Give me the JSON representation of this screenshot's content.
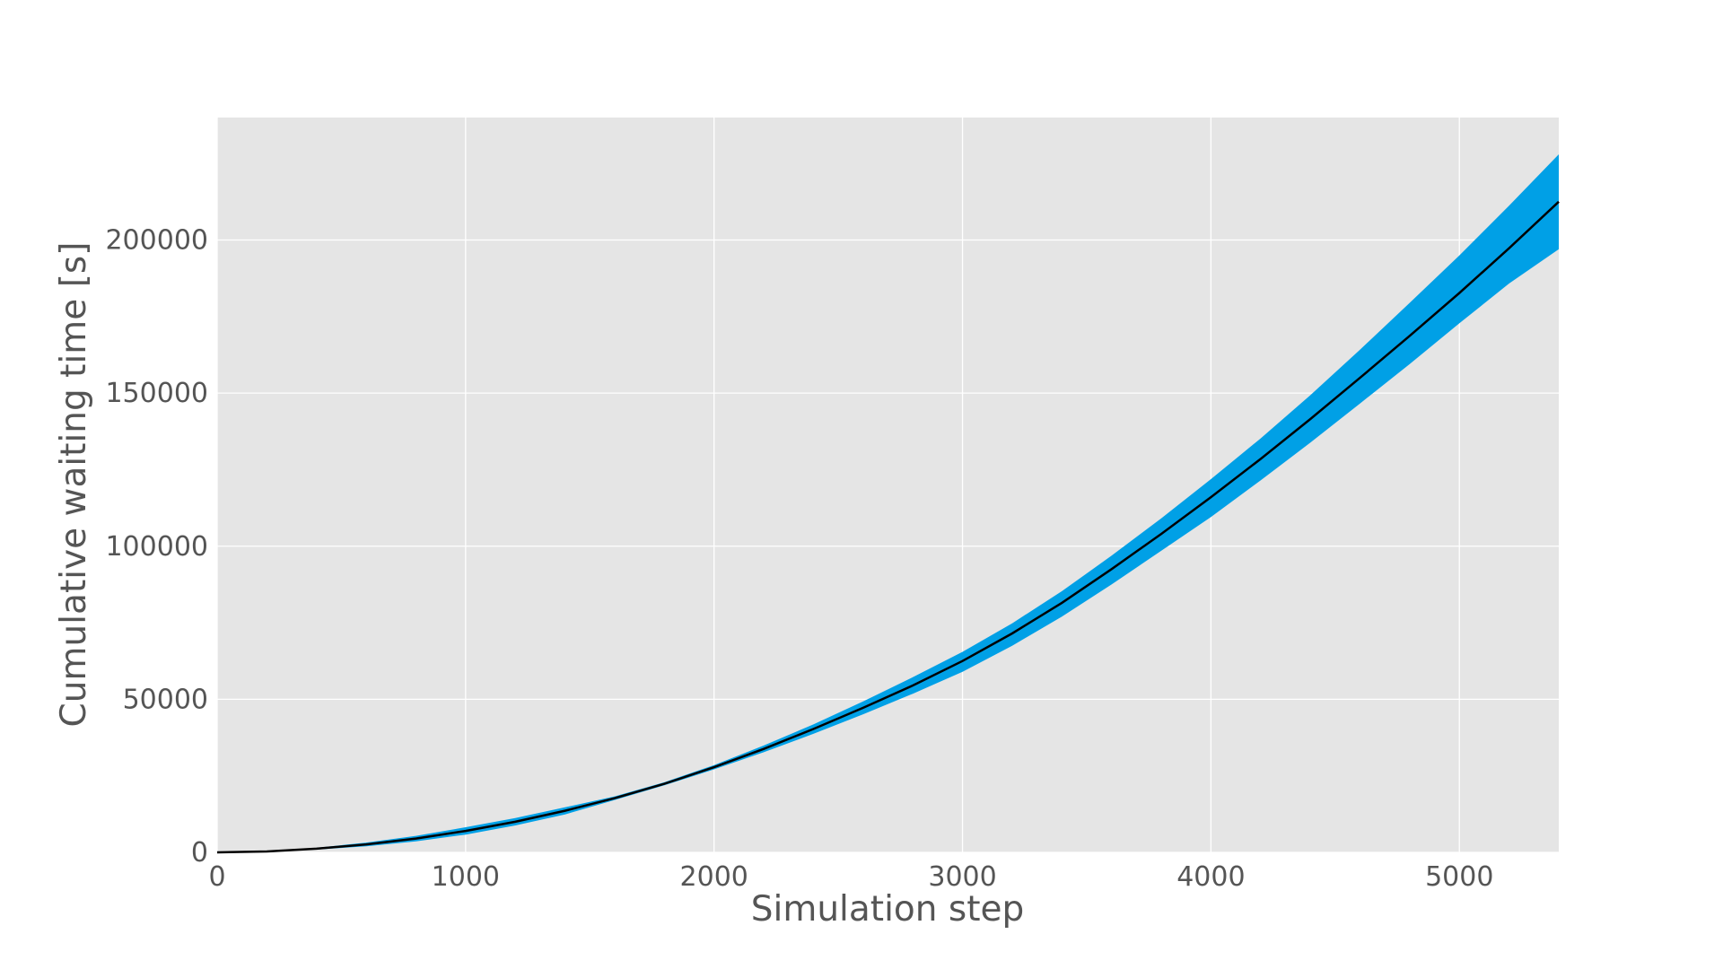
{
  "chart_data": {
    "type": "area",
    "title": "",
    "xlabel": "Simulation step",
    "ylabel": "Cumulative waiting time [s]",
    "xlim": [
      0,
      5400
    ],
    "ylim": [
      0,
      240000
    ],
    "grid": true,
    "x_ticks": [
      0,
      1000,
      2000,
      3000,
      4000,
      5000
    ],
    "y_ticks": [
      0,
      50000,
      100000,
      150000,
      200000
    ],
    "x_tick_labels": [
      "0",
      "1000",
      "2000",
      "3000",
      "4000",
      "5000"
    ],
    "y_tick_labels": [
      "0",
      "50000",
      "100000",
      "150000",
      "200000"
    ],
    "x": [
      0,
      200,
      400,
      600,
      800,
      1000,
      1200,
      1400,
      1600,
      1800,
      2000,
      2200,
      2400,
      2600,
      2800,
      3000,
      3200,
      3400,
      3600,
      3800,
      4000,
      4200,
      4400,
      4600,
      4800,
      5000,
      5200,
      5400
    ],
    "series": [
      {
        "style": "line",
        "color": "#000000",
        "values": [
          0,
          300,
          1200,
          2600,
          4500,
          7000,
          10000,
          13600,
          17700,
          22400,
          27800,
          33800,
          40300,
          47200,
          54500,
          62500,
          71500,
          81500,
          92500,
          104000,
          116000,
          128500,
          141500,
          155000,
          168700,
          182700,
          197300,
          212500
        ]
      },
      {
        "style": "band-upper",
        "color": "#00a0e6",
        "values": [
          0,
          350,
          1500,
          3200,
          5400,
          8200,
          11200,
          14700,
          18300,
          22900,
          28500,
          34900,
          41800,
          49300,
          57200,
          65500,
          74800,
          85300,
          96900,
          109100,
          121900,
          135200,
          149300,
          164200,
          179500,
          195000,
          211200,
          228000
        ]
      },
      {
        "style": "band-lower",
        "color": "#00a0e6",
        "values": [
          0,
          250,
          900,
          2000,
          3600,
          5800,
          8800,
          12400,
          17100,
          21900,
          27100,
          32700,
          38700,
          45100,
          51800,
          59000,
          67500,
          77000,
          87500,
          98500,
          109500,
          121500,
          133800,
          146600,
          159500,
          172800,
          185800,
          197000
        ]
      }
    ]
  }
}
